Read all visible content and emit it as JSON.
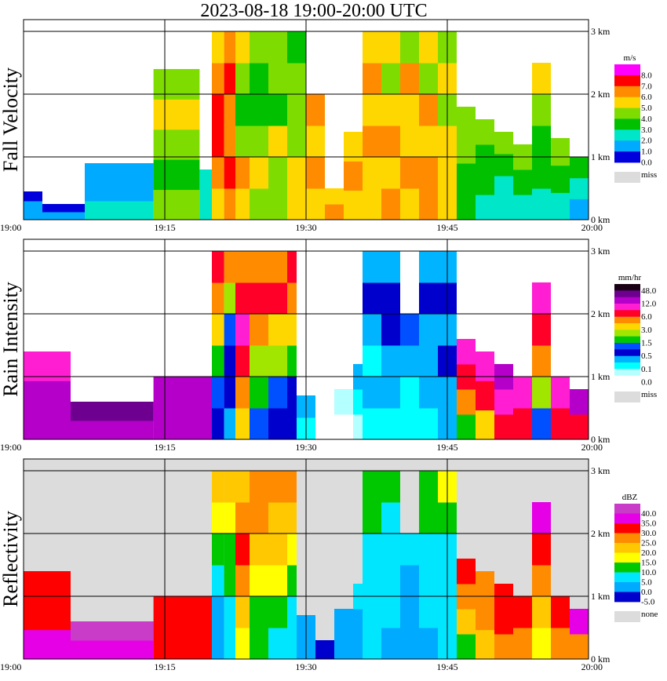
{
  "title": "2023-08-18   19:00-20:00 UTC",
  "chart_data": [
    {
      "type": "heatmap",
      "ylabel": "Fall Velocity",
      "x_ticks": [
        "19:00",
        "19:15",
        "19:30",
        "19:45",
        "20:00"
      ],
      "y_ticks": [
        "0 km",
        "1 km",
        "2 km",
        "3 km"
      ],
      "ylim_km": [
        0,
        3.0
      ],
      "grid": true,
      "legend": {
        "unit": "m/s",
        "entries": [
          {
            "label": "8.0",
            "color": "#ff00ff"
          },
          {
            "label": "7.0",
            "color": "#ff0000"
          },
          {
            "label": "6.0",
            "color": "#ff8c00"
          },
          {
            "label": "5.0",
            "color": "#ffd700"
          },
          {
            "label": "4.0",
            "color": "#7fdc00"
          },
          {
            "label": "3.0",
            "color": "#00c000"
          },
          {
            "label": "2.0",
            "color": "#00e6c8"
          },
          {
            "label": "1.0",
            "color": "#00aaff"
          },
          {
            "label": "0.0",
            "color": "#0000dd"
          },
          {
            "label": "miss",
            "color": "#dcdcdc"
          }
        ]
      },
      "background": "#ffffff",
      "data_columns": [
        {
          "t": 0.0,
          "top_km": 0.45,
          "vals": [
            1,
            1,
            0
          ]
        },
        {
          "t": 2.0,
          "top_km": 0.25,
          "vals": [
            1,
            0
          ]
        },
        {
          "t": 6.5,
          "top_km": 0.9,
          "vals": [
            2,
            1,
            1
          ]
        },
        {
          "t": 13.8,
          "top_km": 2.4,
          "vals": [
            4,
            3,
            4,
            5,
            4
          ]
        },
        {
          "t": 18.7,
          "top_km": 0.8,
          "vals": [
            2,
            2
          ]
        },
        {
          "t": 20.0,
          "top_km": 3.0,
          "vals": [
            5,
            6,
            7,
            7,
            6,
            5
          ]
        },
        {
          "t": 21.3,
          "top_km": 3.0,
          "vals": [
            6,
            7,
            6,
            6,
            7,
            6
          ]
        },
        {
          "t": 22.5,
          "top_km": 3.0,
          "vals": [
            5,
            6,
            4,
            3,
            4,
            5
          ]
        },
        {
          "t": 24.0,
          "top_km": 3.0,
          "vals": [
            4,
            5,
            4,
            3,
            3,
            4
          ]
        },
        {
          "t": 26.0,
          "top_km": 3.0,
          "vals": [
            4,
            4,
            5,
            3,
            4,
            4
          ]
        },
        {
          "t": 28.0,
          "top_km": 3.0,
          "vals": [
            5,
            5,
            4,
            4,
            4,
            3
          ]
        },
        {
          "t": 30.0,
          "top_km": 2.0,
          "vals": [
            5,
            6,
            5,
            6
          ]
        },
        {
          "t": 32.0,
          "top_km": 0.5,
          "vals": [
            6,
            5
          ]
        },
        {
          "t": 34.0,
          "top_km": 1.4,
          "vals": [
            5,
            6,
            5
          ]
        },
        {
          "t": 36.0,
          "top_km": 3.0,
          "vals": [
            5,
            5,
            6,
            5,
            6,
            5
          ]
        },
        {
          "t": 38.0,
          "top_km": 3.0,
          "vals": [
            6,
            5,
            6,
            5,
            4,
            5
          ]
        },
        {
          "t": 40.0,
          "top_km": 3.0,
          "vals": [
            5,
            6,
            5,
            5,
            6,
            4
          ]
        },
        {
          "t": 42.0,
          "top_km": 3.0,
          "vals": [
            6,
            6,
            5,
            6,
            4,
            5
          ]
        },
        {
          "t": 44.0,
          "top_km": 3.0,
          "vals": [
            5,
            5,
            5,
            4,
            5,
            4
          ]
        },
        {
          "t": 46.0,
          "top_km": 1.8,
          "vals": [
            3,
            3,
            4,
            4
          ]
        },
        {
          "t": 48.0,
          "top_km": 1.6,
          "vals": [
            2,
            3,
            3,
            4
          ]
        },
        {
          "t": 50.0,
          "top_km": 1.4,
          "vals": [
            2,
            2,
            3,
            4
          ]
        },
        {
          "t": 52.0,
          "top_km": 1.2,
          "vals": [
            2,
            3,
            4
          ]
        },
        {
          "t": 54.0,
          "top_km": 2.5,
          "vals": [
            2,
            3,
            3,
            4,
            5
          ]
        },
        {
          "t": 56.0,
          "top_km": 1.3,
          "vals": [
            2,
            3,
            4
          ]
        },
        {
          "t": 58.0,
          "top_km": 1.0,
          "vals": [
            1,
            2,
            3
          ]
        }
      ]
    },
    {
      "type": "heatmap",
      "ylabel": "Rain Intensity",
      "x_ticks": [
        "19:00",
        "19:15",
        "19:30",
        "19:45",
        "20:00"
      ],
      "y_ticks": [
        "0 km",
        "1 km",
        "2 km",
        "3 km"
      ],
      "ylim_km": [
        0,
        3.0
      ],
      "grid": true,
      "legend": {
        "unit": "mm/hr",
        "entries": [
          {
            "label": "48.0",
            "color": "#1a0014"
          },
          {
            "label": "",
            "color": "#6e0090"
          },
          {
            "label": "12.0",
            "color": "#b400c8"
          },
          {
            "label": "",
            "color": "#ff1ed2"
          },
          {
            "label": "6.0",
            "color": "#ff0028"
          },
          {
            "label": "",
            "color": "#ff8c00"
          },
          {
            "label": "3.0",
            "color": "#ffd700"
          },
          {
            "label": "",
            "color": "#a0e600"
          },
          {
            "label": "1.5",
            "color": "#00c800"
          },
          {
            "label": "",
            "color": "#0050ff"
          },
          {
            "label": "0.5",
            "color": "#0000cd"
          },
          {
            "label": "",
            "color": "#00b4ff"
          },
          {
            "label": "0.1",
            "color": "#00ffff"
          },
          {
            "label": "",
            "color": "#b4ffff"
          },
          {
            "label": "0.0",
            "color": "#ffffff"
          },
          {
            "label": "miss",
            "color": "#dcdcdc"
          }
        ]
      },
      "background": "#ffffff",
      "data_columns": [
        {
          "t": 0.0,
          "top_km": 1.4,
          "vals": [
            12,
            12,
            11
          ]
        },
        {
          "t": 5.0,
          "top_km": 0.6,
          "vals": [
            12,
            13
          ]
        },
        {
          "t": 13.8,
          "top_km": 1.0,
          "vals": [
            12,
            12
          ]
        },
        {
          "t": 20.0,
          "top_km": 3.0,
          "vals": [
            4,
            5,
            6,
            8,
            9,
            10
          ]
        },
        {
          "t": 21.3,
          "top_km": 3.0,
          "vals": [
            3,
            4,
            4,
            5,
            7,
            9
          ]
        },
        {
          "t": 22.5,
          "top_km": 3.0,
          "vals": [
            8,
            9,
            10,
            11,
            10,
            9
          ]
        },
        {
          "t": 24.0,
          "top_km": 3.0,
          "vals": [
            5,
            6,
            7,
            9,
            10,
            9
          ]
        },
        {
          "t": 26.0,
          "top_km": 3.0,
          "vals": [
            4,
            5,
            7,
            8,
            10,
            9
          ]
        },
        {
          "t": 28.0,
          "top_km": 3.0,
          "vals": [
            4,
            4,
            6,
            8,
            9,
            10
          ]
        },
        {
          "t": 29.0,
          "top_km": 0.7,
          "vals": [
            2,
            3
          ]
        },
        {
          "t": 31.0,
          "top_km": 0.3,
          "vals": [
            0
          ]
        },
        {
          "t": 33.0,
          "top_km": 0.8,
          "vals": [
            0,
            1
          ]
        },
        {
          "t": 35.0,
          "top_km": 1.2,
          "vals": [
            1,
            2,
            3
          ]
        },
        {
          "t": 36.0,
          "top_km": 3.0,
          "vals": [
            2,
            3,
            2,
            3,
            4,
            3
          ]
        },
        {
          "t": 38.0,
          "top_km": 3.0,
          "vals": [
            2,
            3,
            3,
            4,
            4,
            3
          ]
        },
        {
          "t": 40.0,
          "top_km": 2.0,
          "vals": [
            2,
            2,
            3,
            5
          ]
        },
        {
          "t": 42.0,
          "top_km": 3.0,
          "vals": [
            2,
            3,
            3,
            3,
            4,
            3
          ]
        },
        {
          "t": 44.0,
          "top_km": 3.0,
          "vals": [
            3,
            3,
            4,
            3,
            4,
            3
          ]
        },
        {
          "t": 46.0,
          "top_km": 1.6,
          "vals": [
            6,
            9,
            10,
            11
          ]
        },
        {
          "t": 48.0,
          "top_km": 1.4,
          "vals": [
            8,
            10,
            11
          ]
        },
        {
          "t": 50.0,
          "top_km": 1.2,
          "vals": [
            10,
            11,
            12
          ]
        },
        {
          "t": 52.0,
          "top_km": 1.0,
          "vals": [
            10,
            11
          ]
        },
        {
          "t": 54.0,
          "top_km": 2.5,
          "vals": [
            5,
            7,
            9,
            10,
            11
          ]
        },
        {
          "t": 56.0,
          "top_km": 1.0,
          "vals": [
            10,
            11
          ]
        },
        {
          "t": 58.0,
          "top_km": 0.8,
          "vals": [
            10,
            12
          ]
        }
      ]
    },
    {
      "type": "heatmap",
      "ylabel": "Reflectivity",
      "x_ticks": [
        "19:00",
        "19:15",
        "19:30",
        "19:45",
        "20:00"
      ],
      "y_ticks": [
        "0 km",
        "1 km",
        "2 km",
        "3 km"
      ],
      "ylim_km": [
        0,
        3.0
      ],
      "grid": true,
      "legend": {
        "unit": "dBZ",
        "entries": [
          {
            "label": "40.0",
            "color": "#c83cc8"
          },
          {
            "label": "35.0",
            "color": "#e600e6"
          },
          {
            "label": "30.0",
            "color": "#ff0000"
          },
          {
            "label": "25.0",
            "color": "#ff8c00"
          },
          {
            "label": "20.0",
            "color": "#ffc800"
          },
          {
            "label": "15.0",
            "color": "#ffff00"
          },
          {
            "label": "10.0",
            "color": "#00c800"
          },
          {
            "label": "5.0",
            "color": "#00e6ff"
          },
          {
            "label": "0.0",
            "color": "#00aaff"
          },
          {
            "label": "-5.0",
            "color": "#0000cd"
          },
          {
            "label": "none",
            "color": "#dcdcdc"
          }
        ]
      },
      "background": "#dcdcdc",
      "data_columns": [
        {
          "t": 0.0,
          "top_km": 1.4,
          "vals": [
            8,
            7,
            7
          ]
        },
        {
          "t": 5.0,
          "top_km": 0.6,
          "vals": [
            8,
            9
          ]
        },
        {
          "t": 13.8,
          "top_km": 1.0,
          "vals": [
            7,
            7
          ]
        },
        {
          "t": 20.0,
          "top_km": 3.0,
          "vals": [
            1,
            1,
            2,
            3,
            4,
            5
          ]
        },
        {
          "t": 21.3,
          "top_km": 3.0,
          "vals": [
            2,
            2,
            3,
            3,
            4,
            5
          ]
        },
        {
          "t": 22.5,
          "top_km": 3.0,
          "vals": [
            4,
            5,
            6,
            7,
            6,
            5
          ]
        },
        {
          "t": 24.0,
          "top_km": 3.0,
          "vals": [
            3,
            3,
            4,
            5,
            6,
            6
          ]
        },
        {
          "t": 26.0,
          "top_km": 3.0,
          "vals": [
            2,
            3,
            4,
            5,
            5,
            6
          ]
        },
        {
          "t": 28.0,
          "top_km": 3.0,
          "vals": [
            2,
            2,
            3,
            4,
            5,
            6
          ]
        },
        {
          "t": 29.0,
          "top_km": 0.7,
          "vals": [
            1,
            1
          ]
        },
        {
          "t": 31.0,
          "top_km": 0.3,
          "vals": [
            0
          ]
        },
        {
          "t": 33.0,
          "top_km": 0.8,
          "vals": [
            1,
            1
          ]
        },
        {
          "t": 35.0,
          "top_km": 1.2,
          "vals": [
            1,
            1,
            2
          ]
        },
        {
          "t": 36.0,
          "top_km": 3.0,
          "vals": [
            2,
            2,
            2,
            2,
            3,
            3
          ]
        },
        {
          "t": 38.0,
          "top_km": 3.0,
          "vals": [
            1,
            2,
            2,
            2,
            2,
            3
          ]
        },
        {
          "t": 40.0,
          "top_km": 2.0,
          "vals": [
            1,
            1,
            1,
            2
          ]
        },
        {
          "t": 42.0,
          "top_km": 3.0,
          "vals": [
            1,
            2,
            2,
            2,
            3,
            3
          ]
        },
        {
          "t": 44.0,
          "top_km": 3.0,
          "vals": [
            2,
            2,
            2,
            2,
            3,
            4
          ]
        },
        {
          "t": 46.0,
          "top_km": 1.6,
          "vals": [
            3,
            5,
            6,
            7
          ]
        },
        {
          "t": 48.0,
          "top_km": 1.4,
          "vals": [
            5,
            6,
            6
          ]
        },
        {
          "t": 50.0,
          "top_km": 1.2,
          "vals": [
            6,
            7,
            7
          ]
        },
        {
          "t": 52.0,
          "top_km": 1.0,
          "vals": [
            6,
            7
          ]
        },
        {
          "t": 54.0,
          "top_km": 2.5,
          "vals": [
            4,
            5,
            6,
            7,
            8
          ]
        },
        {
          "t": 56.0,
          "top_km": 1.0,
          "vals": [
            6,
            7
          ]
        },
        {
          "t": 58.0,
          "top_km": 0.8,
          "vals": [
            6,
            8
          ]
        }
      ]
    }
  ]
}
